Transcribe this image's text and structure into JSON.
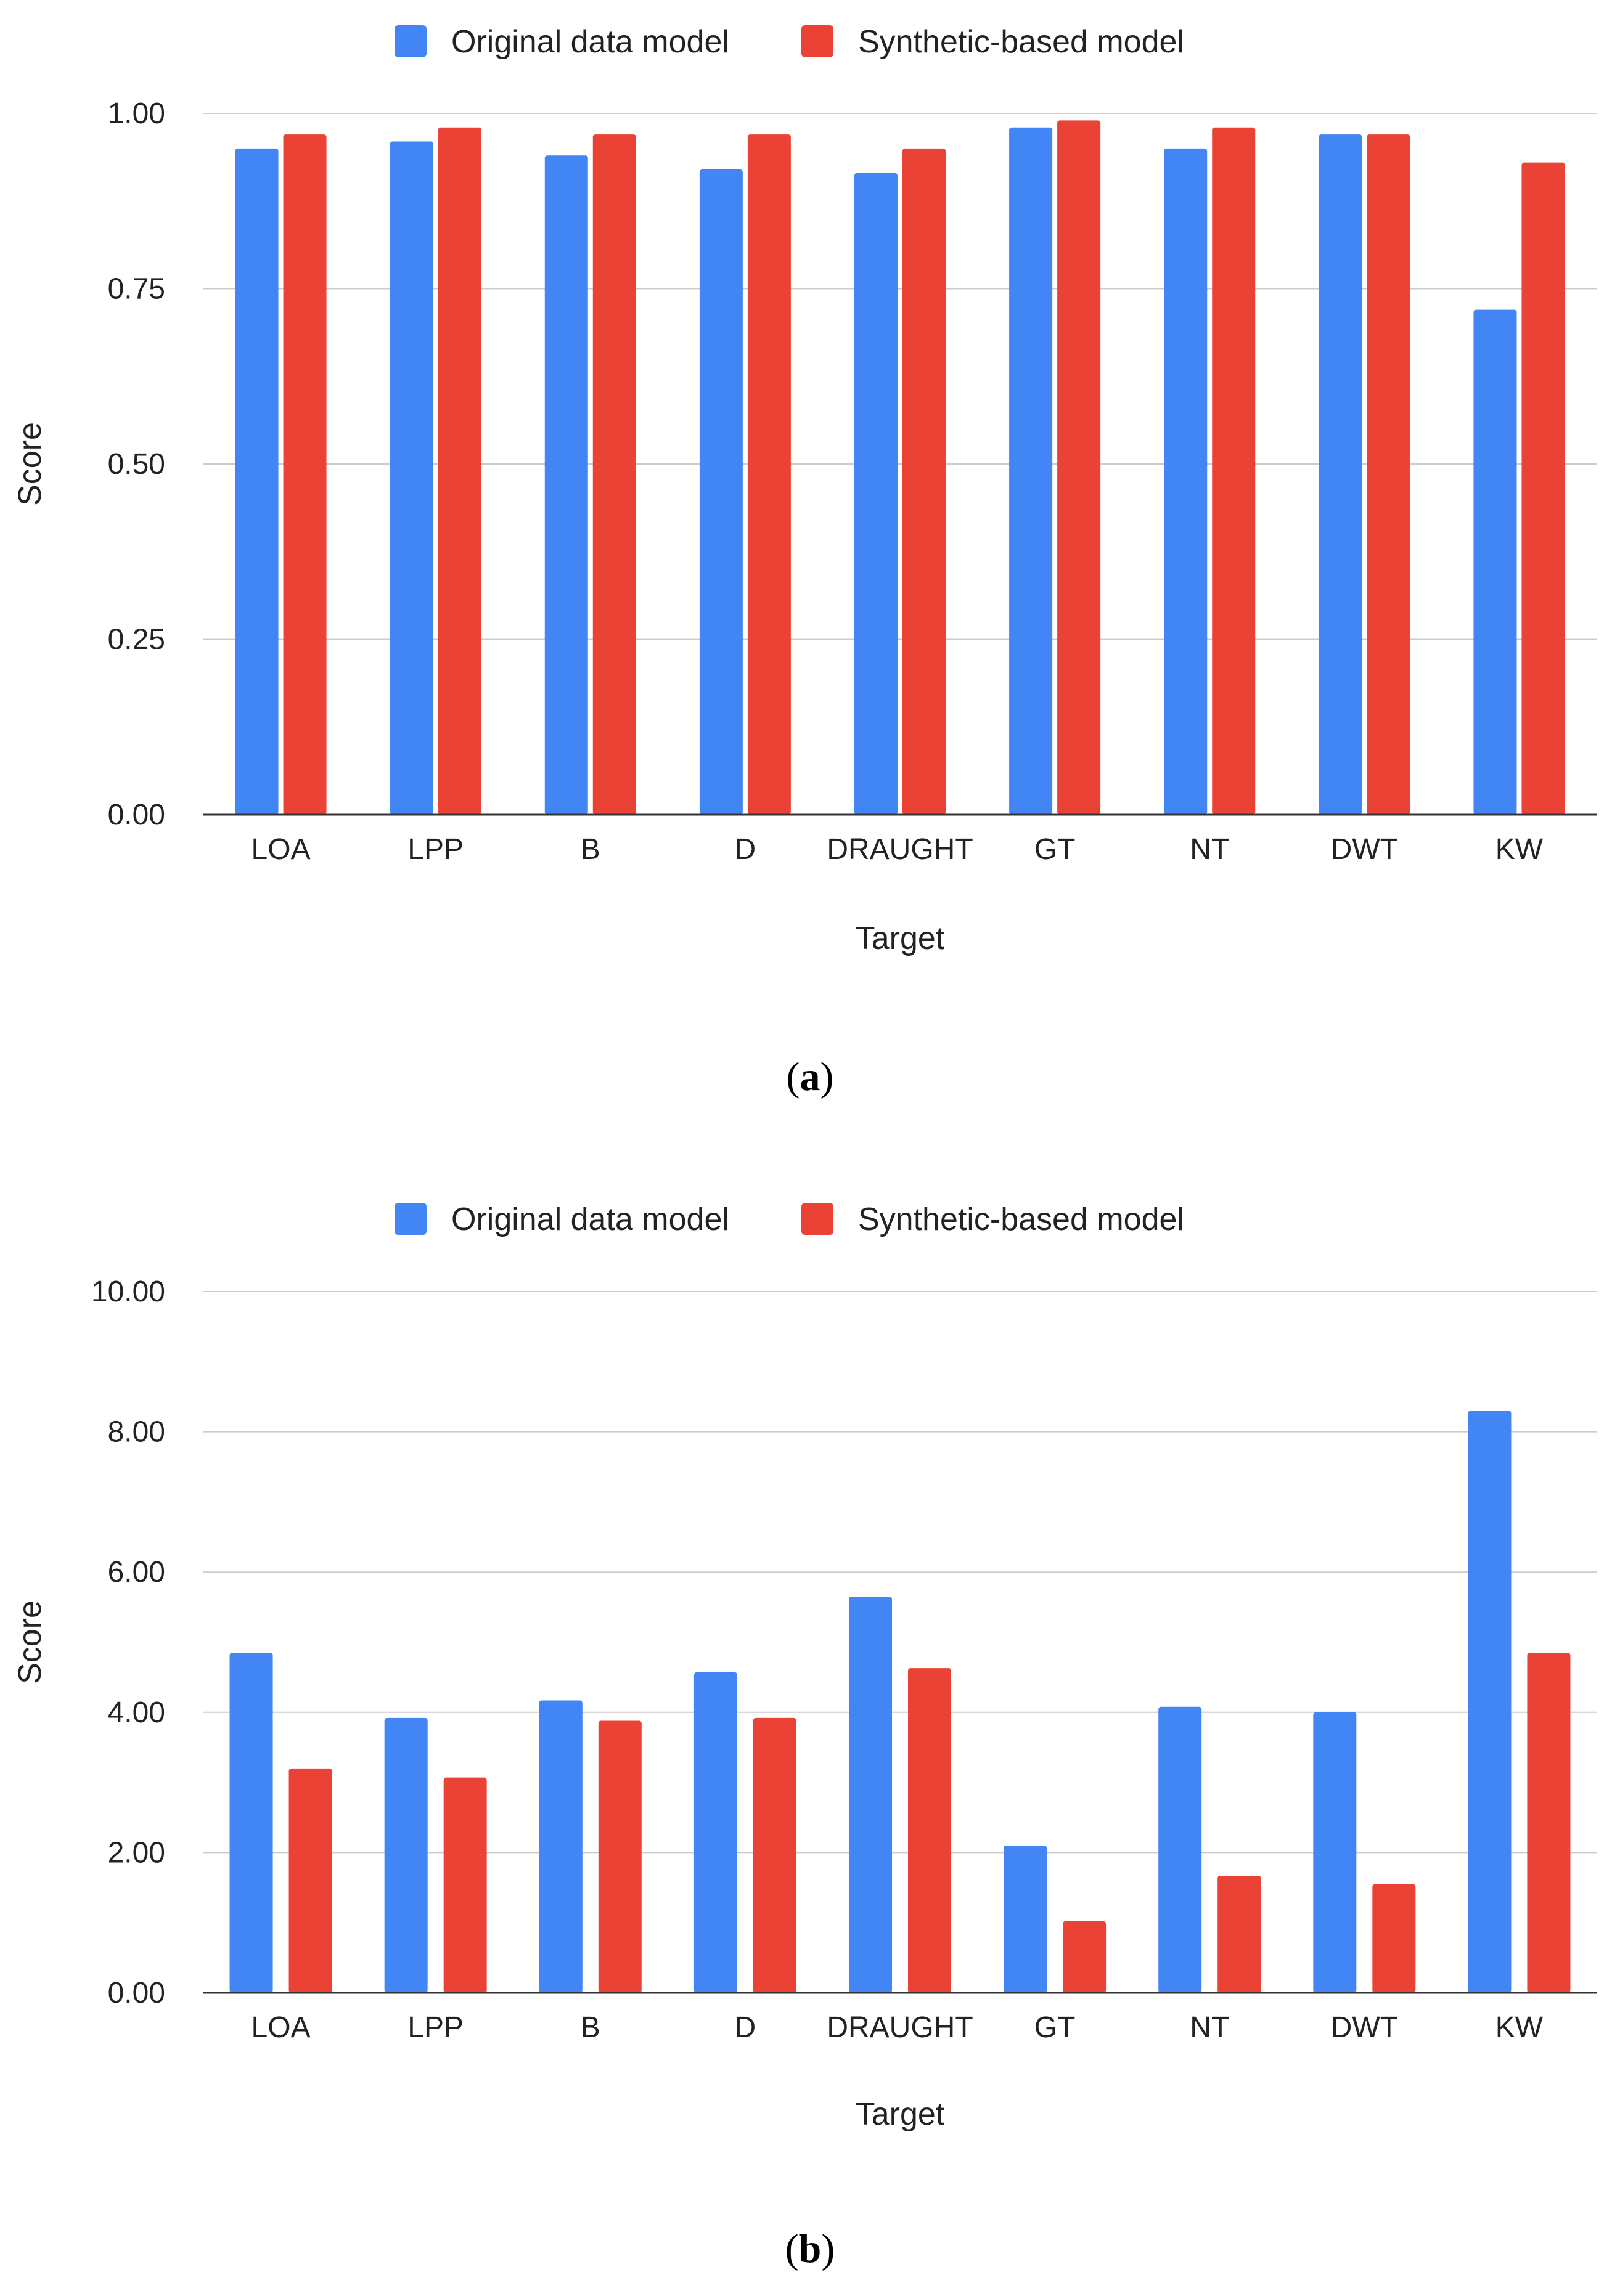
{
  "colors": {
    "series1": "#4285F4",
    "series2": "#EA4335",
    "grid": "#cccccc",
    "axis": "#333333"
  },
  "captions": {
    "a_label": "a",
    "b_label": "b"
  },
  "chart_data": [
    {
      "type": "bar",
      "title": "",
      "xlabel": "Target",
      "ylabel": "Score",
      "ylim": [
        0,
        1
      ],
      "yticks": [
        0,
        0.25,
        0.5,
        0.75,
        1.0
      ],
      "ytick_labels": [
        "0.00",
        "0.25",
        "0.50",
        "0.75",
        "1.00"
      ],
      "grid": true,
      "legend_position": "top-center",
      "categories": [
        "LOA",
        "LPP",
        "B",
        "D",
        "DRAUGHT",
        "GT",
        "NT",
        "DWT",
        "KW"
      ],
      "series": [
        {
          "name": "Original data model",
          "values": [
            0.95,
            0.96,
            0.94,
            0.92,
            0.915,
            0.98,
            0.95,
            0.97,
            0.72
          ]
        },
        {
          "name": "Synthetic-based model",
          "values": [
            0.97,
            0.98,
            0.97,
            0.97,
            0.95,
            0.99,
            0.98,
            0.97,
            0.93
          ]
        }
      ]
    },
    {
      "type": "bar",
      "title": "",
      "xlabel": "Target",
      "ylabel": "Score",
      "ylim": [
        0,
        10
      ],
      "yticks": [
        0,
        2,
        4,
        6,
        8,
        10
      ],
      "ytick_labels": [
        "0.00",
        "2.00",
        "4.00",
        "6.00",
        "8.00",
        "10.00"
      ],
      "grid": true,
      "legend_position": "top-center",
      "categories": [
        "LOA",
        "LPP",
        "B",
        "D",
        "DRAUGHT",
        "GT",
        "NT",
        "DWT",
        "KW"
      ],
      "series": [
        {
          "name": "Original data model",
          "values": [
            4.85,
            3.92,
            4.17,
            4.57,
            5.65,
            2.1,
            4.08,
            4.0,
            8.3
          ]
        },
        {
          "name": "Synthetic-based model",
          "values": [
            3.2,
            3.07,
            3.88,
            3.92,
            4.63,
            1.02,
            1.67,
            1.55,
            4.85
          ]
        }
      ]
    }
  ]
}
